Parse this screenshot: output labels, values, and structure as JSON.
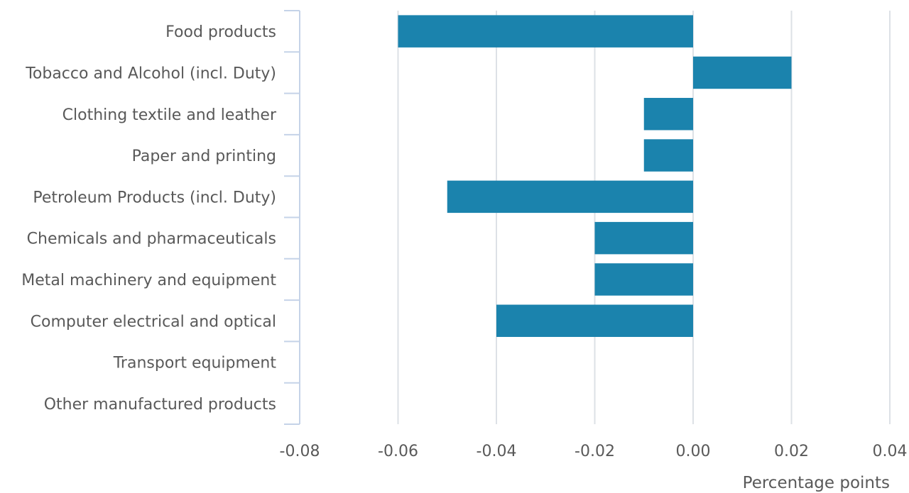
{
  "chart_data": {
    "type": "bar",
    "orientation": "horizontal",
    "categories": [
      "Food products",
      "Tobacco and Alcohol (incl. Duty)",
      "Clothing textile and leather",
      "Paper and printing",
      "Petroleum Products (incl. Duty)",
      "Chemicals and pharmaceuticals",
      "Metal machinery and equipment",
      "Computer electrical and optical",
      "Transport equipment",
      "Other manufactured products"
    ],
    "values": [
      -0.06,
      0.02,
      -0.01,
      -0.01,
      -0.05,
      -0.02,
      -0.02,
      -0.04,
      0.0,
      0.0
    ],
    "xlabel": "Percentage points",
    "ylabel": "",
    "xlim": [
      -0.08,
      0.04
    ],
    "xticks": [
      "-0.08",
      "-0.06",
      "-0.04",
      "-0.02",
      "0.00",
      "0.02",
      "0.04"
    ],
    "grid": true,
    "legend": "none",
    "bar_color": "#1b83ad"
  }
}
